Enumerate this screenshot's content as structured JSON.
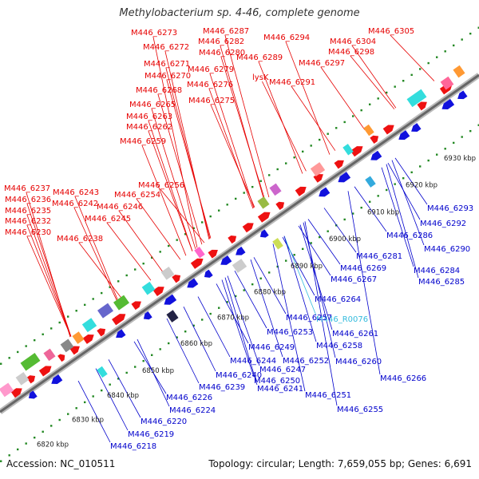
{
  "title": "Methylobacterium sp. 4-46, complete genome",
  "accession": "Accession: NC_010511",
  "topology": "Topology: circular; Length: 7,659,055 bp; Genes: 6,691",
  "colors": {
    "top_labels": "#e60000",
    "bottom_labels": "#0000cc",
    "rna_label": "#33bbdd",
    "forward_gene": "#ee1111",
    "reverse_gene": "#1111dd",
    "backbone": "#777777",
    "tick_dots": "#228822"
  },
  "kbp_labels": [
    "6820 kbp",
    "6830 kbp",
    "6840 kbp",
    "6850 kbp",
    "6860 kbp",
    "6870 kbp",
    "6880 kbp",
    "6890 kbp",
    "6900 kbp",
    "6910 kbp",
    "6920 kbp",
    "6930 kbp"
  ],
  "top_labels": [
    "M446_6273",
    "M446_6287",
    "M446_6294",
    "M446_6305",
    "M446_6282",
    "M446_6304",
    "M446_6272",
    "M446_6280",
    "M446_6289",
    "M446_6298",
    "M446_6271",
    "M446_6279",
    "M446_6297",
    "lysK",
    "M446_6270",
    "M446_6276",
    "M446_6291",
    "M446_6268",
    "M446_6275",
    "M446_6265",
    "M446_6263",
    "M446_6262",
    "M446_6259",
    "M446_6256",
    "M446_6237",
    "M446_6243",
    "M446_6254",
    "M446_6236",
    "M446_6242",
    "M446_6246",
    "M446_6235",
    "M446_6245",
    "M446_6232",
    "M446_6230",
    "M446_6238"
  ],
  "bottom_labels": [
    "M446_6293",
    "M446_6292",
    "M446_6286",
    "M446_6290",
    "M446_6281",
    "M446_6284",
    "M446_6269",
    "M446_6285",
    "M446_6267",
    "M446_6264",
    "M446_R0076",
    "M446_6257",
    "M446_6261",
    "M446_6253",
    "M446_6258",
    "M446_6249",
    "M446_6252",
    "M446_6244",
    "M446_6260",
    "M446_6247",
    "M446_6240",
    "M446_6266",
    "M446_6250",
    "M446_6239",
    "M446_6241",
    "M446_6251",
    "M446_6226",
    "M446_6255",
    "M446_6224",
    "M446_6220",
    "M446_6219",
    "M446_6218"
  ]
}
